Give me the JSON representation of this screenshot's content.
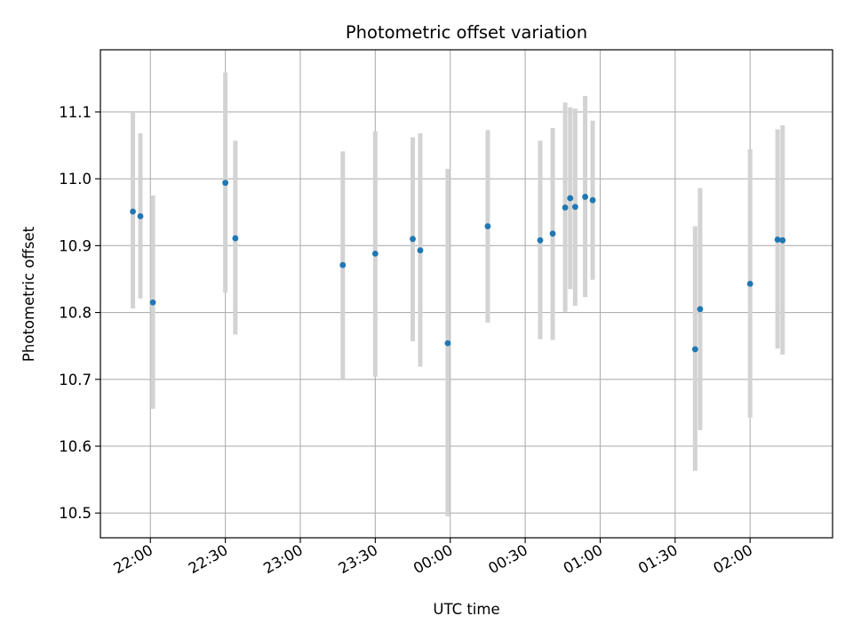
{
  "chart_data": {
    "type": "scatter",
    "title": "Photometric offset variation",
    "xlabel": "UTC time",
    "ylabel": "Photometric offset",
    "x_unit": "UTC time (HH:MM)",
    "xlim": [
      "21:40",
      "2:33"
    ],
    "ylim": [
      10.463,
      11.193
    ],
    "x_ticks": [
      "22:00",
      "22:30",
      "23:00",
      "23:30",
      "00:00",
      "00:30",
      "01:00",
      "01:30",
      "02:00"
    ],
    "y_ticks": [
      "10.5",
      "10.6",
      "10.7",
      "10.8",
      "10.9",
      "11.0",
      "11.1"
    ],
    "grid": true,
    "colors": {
      "point": "#1f77b4",
      "errorbar": "#d3d3d3",
      "grid": "#b0b0b0"
    },
    "series": [
      {
        "points": [
          {
            "x": "21:53",
            "y": 10.951,
            "ylo": 10.806,
            "yhi": 11.1
          },
          {
            "x": "21:56",
            "y": 10.944,
            "ylo": 10.821,
            "yhi": 11.068
          },
          {
            "x": "22:01",
            "y": 10.815,
            "ylo": 10.656,
            "yhi": 10.975
          },
          {
            "x": "22:30",
            "y": 10.994,
            "ylo": 10.83,
            "yhi": 11.159
          },
          {
            "x": "22:34",
            "y": 10.911,
            "ylo": 10.767,
            "yhi": 11.057
          },
          {
            "x": "23:17",
            "y": 10.871,
            "ylo": 10.7,
            "yhi": 11.041
          },
          {
            "x": "23:30",
            "y": 10.888,
            "ylo": 10.704,
            "yhi": 11.071
          },
          {
            "x": "23:45",
            "y": 10.91,
            "ylo": 10.757,
            "yhi": 11.062
          },
          {
            "x": "23:48",
            "y": 10.893,
            "ylo": 10.719,
            "yhi": 11.068
          },
          {
            "x": "23:59",
            "y": 10.754,
            "ylo": 10.495,
            "yhi": 11.015
          },
          {
            "x": "00:15",
            "y": 10.929,
            "ylo": 10.785,
            "yhi": 11.073
          },
          {
            "x": "00:36",
            "y": 10.908,
            "ylo": 10.76,
            "yhi": 11.057
          },
          {
            "x": "00:41",
            "y": 10.918,
            "ylo": 10.759,
            "yhi": 11.076
          },
          {
            "x": "00:46",
            "y": 10.957,
            "ylo": 10.801,
            "yhi": 11.114
          },
          {
            "x": "00:48",
            "y": 10.971,
            "ylo": 10.835,
            "yhi": 11.107
          },
          {
            "x": "00:50",
            "y": 10.958,
            "ylo": 10.81,
            "yhi": 11.105
          },
          {
            "x": "00:54",
            "y": 10.973,
            "ylo": 10.823,
            "yhi": 11.124
          },
          {
            "x": "00:57",
            "y": 10.968,
            "ylo": 10.849,
            "yhi": 11.087
          },
          {
            "x": "01:38",
            "y": 10.745,
            "ylo": 10.563,
            "yhi": 10.929
          },
          {
            "x": "01:40",
            "y": 10.805,
            "ylo": 10.624,
            "yhi": 10.986
          },
          {
            "x": "02:00",
            "y": 10.843,
            "ylo": 10.643,
            "yhi": 11.044
          },
          {
            "x": "02:11",
            "y": 10.909,
            "ylo": 10.746,
            "yhi": 11.074
          },
          {
            "x": "02:13",
            "y": 10.908,
            "ylo": 10.737,
            "yhi": 11.08
          }
        ]
      }
    ]
  }
}
